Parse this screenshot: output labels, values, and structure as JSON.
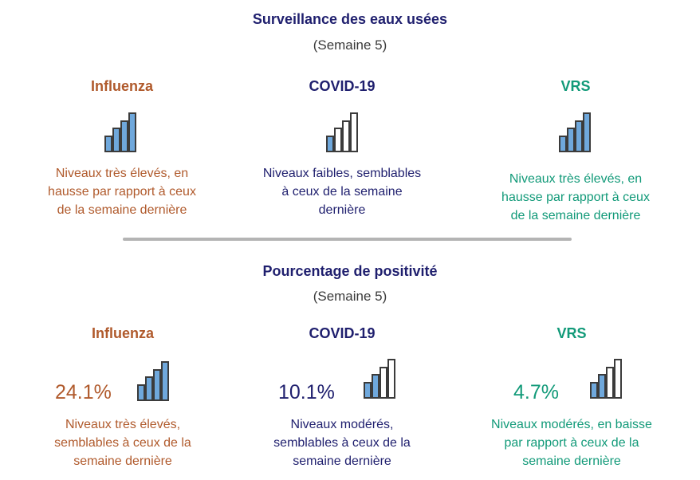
{
  "colors": {
    "influenza": "#b05a2c",
    "covid": "#1f1f6e",
    "rsv": "#129a79",
    "bar_fill": "#6fa8dc",
    "bar_stroke": "#3b3b3b",
    "divider": "#b4b4b4"
  },
  "wastewater": {
    "title": "Surveillance des eaux usées",
    "subtitle": "(Semaine 5)",
    "influenza": {
      "name": "Influenza",
      "icon": "bar-level-icon",
      "filled_bars": 4,
      "desc": [
        "Niveaux très élevés, en",
        "hausse par rapport à ceux",
        "de la semaine dernière"
      ]
    },
    "covid": {
      "name": "COVID-19",
      "icon": "bar-level-icon",
      "filled_bars": 1,
      "desc": [
        "Niveaux faibles, semblables",
        "à ceux de la semaine",
        "dernière"
      ]
    },
    "rsv": {
      "name": "VRS",
      "icon": "bar-level-icon",
      "filled_bars": 4,
      "desc": [
        "Niveaux très élevés, en",
        "hausse par rapport à ceux",
        "de la semaine dernière"
      ]
    }
  },
  "positivity": {
    "title": "Pourcentage de positivité",
    "subtitle": "(Semaine 5)",
    "influenza": {
      "name": "Influenza",
      "percent": "24.1%",
      "icon": "bar-level-icon",
      "filled_bars": 4,
      "desc": [
        "Niveaux très élevés,",
        "semblables à ceux de la",
        "semaine dernière"
      ]
    },
    "covid": {
      "name": "COVID-19",
      "percent": "10.1%",
      "icon": "bar-level-icon",
      "filled_bars": 2,
      "desc": [
        "Niveaux modérés,",
        "semblables à ceux de la",
        "semaine dernière"
      ]
    },
    "rsv": {
      "name": "VRS",
      "percent": "4.7%",
      "icon": "bar-level-icon",
      "filled_bars": 2,
      "desc": [
        "Niveaux modérés, en baisse",
        "par rapport à ceux de la",
        "semaine dernière"
      ]
    }
  }
}
